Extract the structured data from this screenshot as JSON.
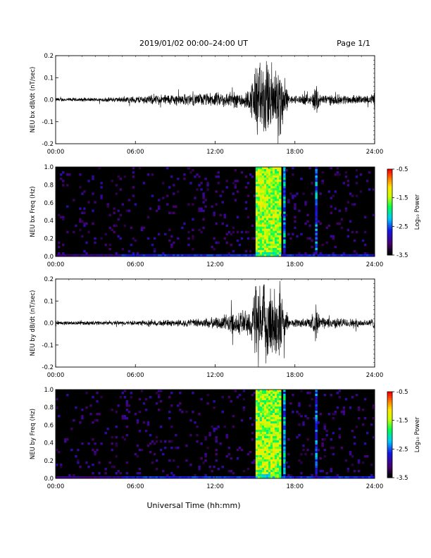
{
  "header": {
    "title": "2019/01/02  00:00–24:00 UT",
    "page": "Page 1/1"
  },
  "xaxis": {
    "label": "Universal Time (hh:mm)",
    "ticks": [
      "00:00",
      "06:00",
      "12:00",
      "18:00",
      "24:00"
    ]
  },
  "colorbar": {
    "label": "Log₁₀ Power",
    "ticks": [
      "-0.5",
      "-1.5",
      "-2.5",
      "-3.5"
    ]
  },
  "chart_data": [
    {
      "type": "line",
      "title": "",
      "ylabel": "NEU bx dB/dt (nT/sec)",
      "xlim": [
        0,
        24
      ],
      "ylim": [
        -0.2,
        0.2
      ],
      "yticks": [
        "0.2",
        "0.1",
        "0.0",
        "-0.1",
        "-0.2"
      ],
      "envelope": [
        {
          "x": 0.0,
          "amp": 0.01
        },
        {
          "x": 3.0,
          "amp": 0.01
        },
        {
          "x": 5.0,
          "amp": 0.015
        },
        {
          "x": 8.5,
          "amp": 0.03
        },
        {
          "x": 10.0,
          "amp": 0.03
        },
        {
          "x": 13.0,
          "amp": 0.04
        },
        {
          "x": 14.6,
          "amp": 0.05
        },
        {
          "x": 15.0,
          "amp": 0.2
        },
        {
          "x": 16.9,
          "amp": 0.2
        },
        {
          "x": 17.3,
          "amp": 0.08
        },
        {
          "x": 17.6,
          "amp": 0.02
        },
        {
          "x": 19.3,
          "amp": 0.03
        },
        {
          "x": 19.6,
          "amp": 0.1
        },
        {
          "x": 19.9,
          "amp": 0.03
        },
        {
          "x": 23.7,
          "amp": 0.02
        },
        {
          "x": 24.0,
          "amp": 0.05
        }
      ]
    },
    {
      "type": "heatmap",
      "title": "",
      "ylabel": "NEU bx Freq (Hz)",
      "xlim": [
        0,
        24
      ],
      "ylim": [
        0,
        1.0
      ],
      "yticks": [
        "1.0",
        "0.8",
        "0.6",
        "0.4",
        "0.2",
        "0.0"
      ],
      "zlim": [
        -3.5,
        -0.5
      ],
      "bursts": [
        {
          "start": 15.0,
          "end": 16.9,
          "power": -1.5
        },
        {
          "start": 17.1,
          "end": 17.3,
          "power": -2.3
        },
        {
          "start": 19.5,
          "end": 19.7,
          "power": -2.5
        }
      ]
    },
    {
      "type": "line",
      "title": "",
      "ylabel": "NEU by dB/dt (nT/sec)",
      "xlim": [
        0,
        24
      ],
      "ylim": [
        -0.2,
        0.2
      ],
      "yticks": [
        "0.2",
        "0.1",
        "0.0",
        "-0.1",
        "-0.2"
      ],
      "envelope": [
        {
          "x": 0.0,
          "amp": 0.01
        },
        {
          "x": 6.0,
          "amp": 0.012
        },
        {
          "x": 10.0,
          "amp": 0.02
        },
        {
          "x": 12.0,
          "amp": 0.03
        },
        {
          "x": 13.5,
          "amp": 0.06
        },
        {
          "x": 14.6,
          "amp": 0.08
        },
        {
          "x": 15.0,
          "amp": 0.2
        },
        {
          "x": 16.9,
          "amp": 0.2
        },
        {
          "x": 17.3,
          "amp": 0.06
        },
        {
          "x": 17.6,
          "amp": 0.02
        },
        {
          "x": 19.3,
          "amp": 0.03
        },
        {
          "x": 19.6,
          "amp": 0.1
        },
        {
          "x": 19.9,
          "amp": 0.03
        },
        {
          "x": 23.6,
          "amp": 0.02
        },
        {
          "x": 24.0,
          "amp": 0.03
        }
      ]
    },
    {
      "type": "heatmap",
      "title": "",
      "ylabel": "NEU by Freq (Hz)",
      "xlim": [
        0,
        24
      ],
      "ylim": [
        0,
        1.0
      ],
      "yticks": [
        "1.0",
        "0.8",
        "0.6",
        "0.4",
        "0.2",
        "0.0"
      ],
      "zlim": [
        -3.5,
        -0.5
      ],
      "bursts": [
        {
          "start": 15.0,
          "end": 16.9,
          "power": -1.5
        },
        {
          "start": 17.1,
          "end": 17.3,
          "power": -2.3
        },
        {
          "start": 19.5,
          "end": 19.7,
          "power": -2.5
        }
      ]
    }
  ]
}
